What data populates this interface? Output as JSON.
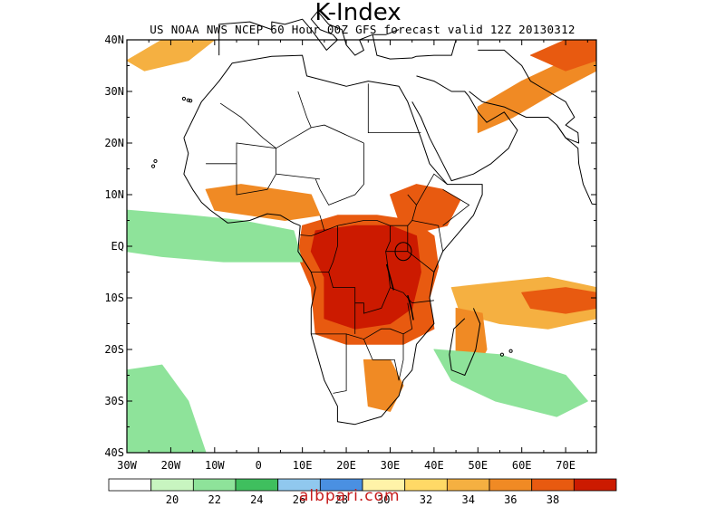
{
  "title": "K-Index",
  "subtitle": "US NOAA NWS NCEP 60 Hour 00Z GFS forecast valid 12Z 20130312",
  "watermark": "albpari.com",
  "map": {
    "lon_range": [
      -30,
      77
    ],
    "lat_range": [
      -40,
      40
    ],
    "lat_ticks": [
      {
        "value": 40,
        "label": "40N"
      },
      {
        "value": 30,
        "label": "30N"
      },
      {
        "value": 20,
        "label": "20N"
      },
      {
        "value": 10,
        "label": "10N"
      },
      {
        "value": 0,
        "label": "EQ"
      },
      {
        "value": -10,
        "label": "10S"
      },
      {
        "value": -20,
        "label": "20S"
      },
      {
        "value": -30,
        "label": "30S"
      },
      {
        "value": -40,
        "label": "40S"
      }
    ],
    "lon_ticks": [
      {
        "value": -30,
        "label": "30W"
      },
      {
        "value": -20,
        "label": "20W"
      },
      {
        "value": -10,
        "label": "10W"
      },
      {
        "value": 0,
        "label": "0"
      },
      {
        "value": 10,
        "label": "10E"
      },
      {
        "value": 20,
        "label": "20E"
      },
      {
        "value": 30,
        "label": "30E"
      },
      {
        "value": 40,
        "label": "40E"
      },
      {
        "value": 50,
        "label": "50E"
      },
      {
        "value": 60,
        "label": "60E"
      },
      {
        "value": 70,
        "label": "70E"
      }
    ]
  },
  "colorbar": {
    "colors": [
      "#ffffff",
      "#c8f5c0",
      "#8ee39a",
      "#3fbf5e",
      "#90c8ee",
      "#4a90e2",
      "#fff3a8",
      "#ffd966",
      "#f5b041",
      "#f08a24",
      "#e85a10",
      "#cc1a00"
    ],
    "labels": [
      "20",
      "22",
      "24",
      "26",
      "28",
      "30",
      "32",
      "34",
      "36",
      "38"
    ]
  },
  "regions": [
    {
      "name": "central-africa-core",
      "color": "#e85a10",
      "points": [
        [
          10,
          4
        ],
        [
          18,
          6
        ],
        [
          27,
          6
        ],
        [
          35,
          5
        ],
        [
          40,
          2
        ],
        [
          41,
          -4
        ],
        [
          39,
          -10
        ],
        [
          40,
          -16
        ],
        [
          33,
          -19
        ],
        [
          27,
          -19
        ],
        [
          20,
          -19
        ],
        [
          13,
          -17
        ],
        [
          12,
          -8
        ],
        [
          9,
          -2
        ]
      ]
    },
    {
      "name": "central-africa-max",
      "color": "#cc1a00",
      "points": [
        [
          13,
          3
        ],
        [
          22,
          4
        ],
        [
          30,
          4
        ],
        [
          36,
          2
        ],
        [
          37,
          -5
        ],
        [
          35,
          -12
        ],
        [
          30,
          -15
        ],
        [
          22,
          -16
        ],
        [
          15,
          -14
        ],
        [
          15,
          -6
        ],
        [
          12,
          -1
        ]
      ]
    },
    {
      "name": "horn-africa",
      "color": "#e85a10",
      "points": [
        [
          30,
          10
        ],
        [
          36,
          12
        ],
        [
          42,
          11
        ],
        [
          46,
          9
        ],
        [
          43,
          4
        ],
        [
          38,
          3
        ],
        [
          32,
          5
        ]
      ]
    },
    {
      "name": "west-africa-belt",
      "color": "#f08a24",
      "points": [
        [
          -12,
          11
        ],
        [
          -4,
          12
        ],
        [
          4,
          11
        ],
        [
          12,
          10
        ],
        [
          14,
          6
        ],
        [
          6,
          5
        ],
        [
          -2,
          6
        ],
        [
          -10,
          7
        ]
      ]
    },
    {
      "name": "atlantic-band",
      "color": "#f5b041",
      "points": [
        [
          -30,
          5
        ],
        [
          -18,
          4
        ],
        [
          -8,
          3
        ],
        [
          4,
          1
        ],
        [
          8,
          -2
        ],
        [
          -6,
          -1
        ],
        [
          -20,
          0
        ],
        [
          -30,
          1
        ]
      ]
    },
    {
      "name": "atlantic-band-edge",
      "color": "#8ee39a",
      "points": [
        [
          -30,
          7
        ],
        [
          -16,
          6
        ],
        [
          -4,
          5
        ],
        [
          8,
          3
        ],
        [
          10,
          -3
        ],
        [
          -8,
          -3
        ],
        [
          -22,
          -2
        ],
        [
          -30,
          -1
        ]
      ]
    },
    {
      "name": "indian-ocean-band",
      "color": "#f5b041",
      "points": [
        [
          44,
          -8
        ],
        [
          55,
          -7
        ],
        [
          66,
          -6
        ],
        [
          77,
          -8
        ],
        [
          77,
          -14
        ],
        [
          66,
          -16
        ],
        [
          55,
          -15
        ],
        [
          46,
          -13
        ]
      ]
    },
    {
      "name": "indian-ocean-core",
      "color": "#e85a10",
      "points": [
        [
          60,
          -9
        ],
        [
          70,
          -8
        ],
        [
          77,
          -9
        ],
        [
          77,
          -12
        ],
        [
          70,
          -13
        ],
        [
          62,
          -12
        ]
      ]
    },
    {
      "name": "madagascar-wedge",
      "color": "#f08a24",
      "points": [
        [
          45,
          -12
        ],
        [
          51,
          -13
        ],
        [
          52,
          -20
        ],
        [
          49,
          -25
        ],
        [
          45,
          -23
        ]
      ]
    },
    {
      "name": "southeast-ocean",
      "color": "#8ee39a",
      "points": [
        [
          40,
          -20
        ],
        [
          55,
          -21
        ],
        [
          70,
          -25
        ],
        [
          75,
          -30
        ],
        [
          68,
          -33
        ],
        [
          54,
          -30
        ],
        [
          44,
          -26
        ]
      ]
    },
    {
      "name": "south-africa-storm",
      "color": "#f08a24",
      "points": [
        [
          24,
          -22
        ],
        [
          30,
          -22
        ],
        [
          33,
          -27
        ],
        [
          30,
          -32
        ],
        [
          25,
          -31
        ]
      ]
    },
    {
      "name": "south-atlantic",
      "color": "#f5b041",
      "points": [
        [
          -30,
          -27
        ],
        [
          -25,
          -26
        ],
        [
          -22,
          -33
        ],
        [
          -18,
          -40
        ],
        [
          -30,
          -40
        ]
      ]
    },
    {
      "name": "south-atlantic-edge",
      "color": "#8ee39a",
      "points": [
        [
          -30,
          -24
        ],
        [
          -22,
          -23
        ],
        [
          -16,
          -30
        ],
        [
          -12,
          -40
        ],
        [
          -30,
          -40
        ]
      ]
    },
    {
      "name": "middle-east-band",
      "color": "#f08a24",
      "points": [
        [
          50,
          27
        ],
        [
          60,
          32
        ],
        [
          70,
          36
        ],
        [
          77,
          40
        ],
        [
          77,
          34
        ],
        [
          68,
          30
        ],
        [
          58,
          25
        ],
        [
          50,
          22
        ]
      ]
    },
    {
      "name": "mediterranean-north",
      "color": "#f5b041",
      "points": [
        [
          -30,
          36
        ],
        [
          -22,
          40
        ],
        [
          -10,
          40
        ],
        [
          -16,
          36
        ],
        [
          -26,
          34
        ]
      ]
    },
    {
      "name": "north-east-corner",
      "color": "#e85a10",
      "points": [
        [
          62,
          37
        ],
        [
          70,
          40
        ],
        [
          77,
          40
        ],
        [
          77,
          36
        ],
        [
          70,
          34
        ]
      ]
    }
  ]
}
